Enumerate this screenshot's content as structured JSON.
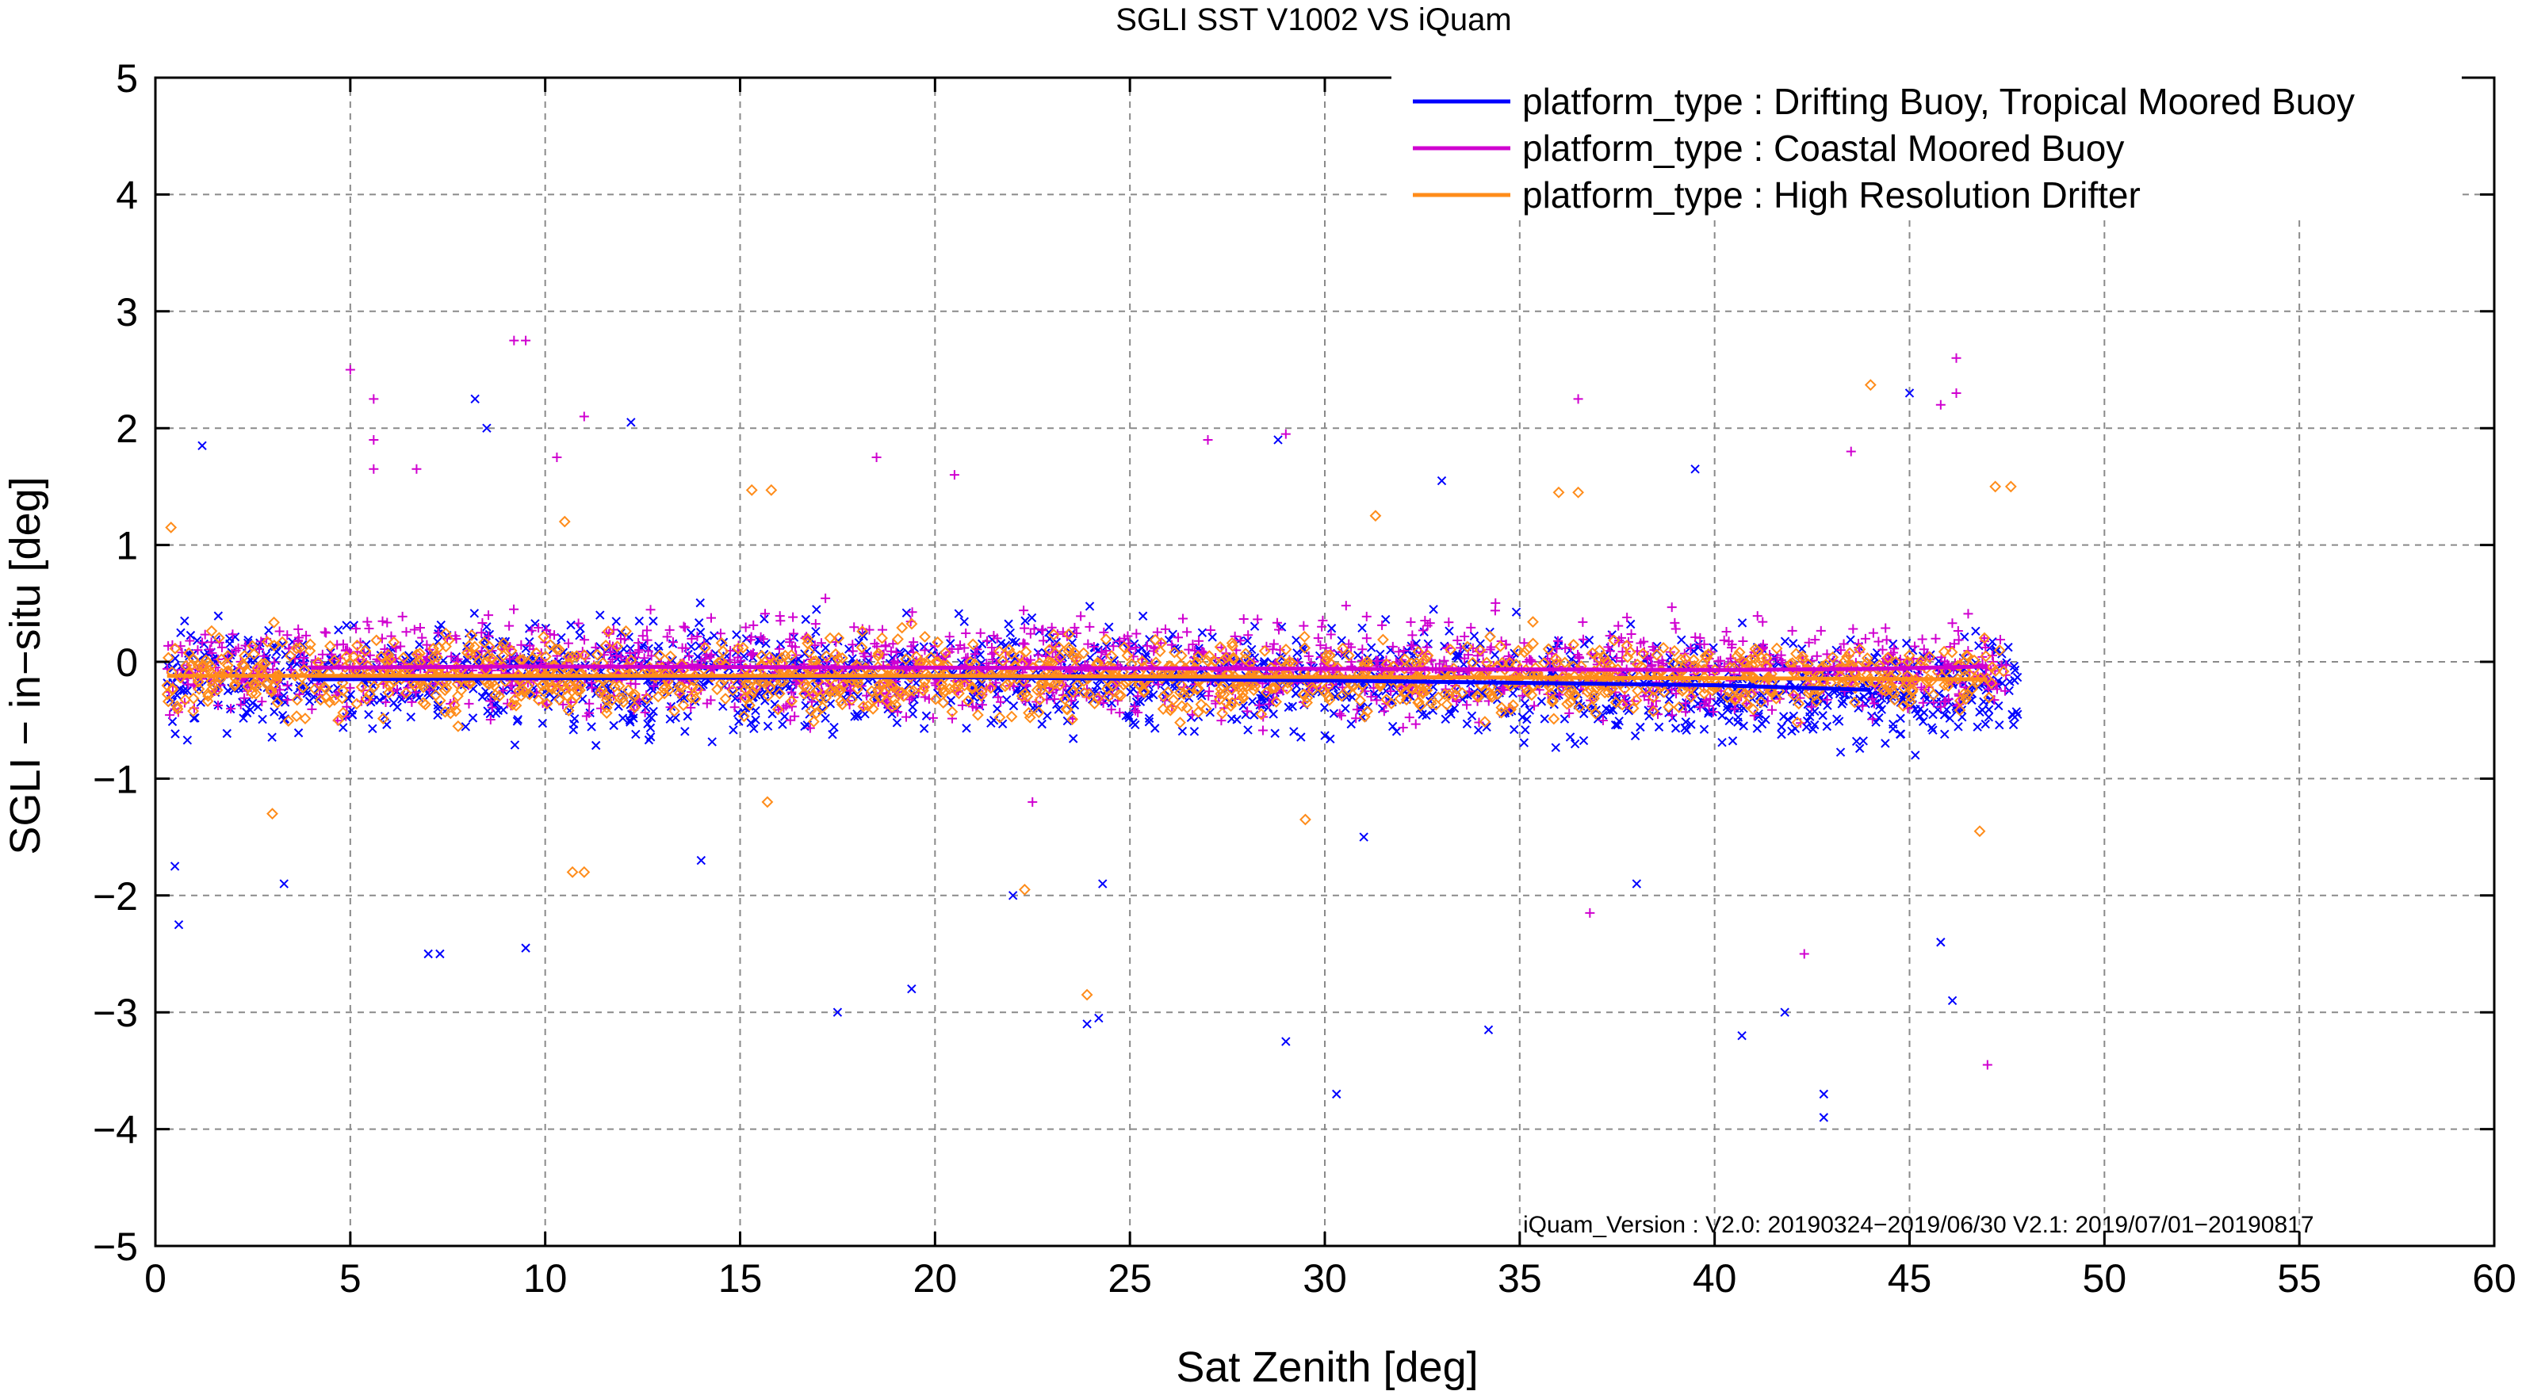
{
  "chart_data": {
    "type": "scatter",
    "title": "SGLI SST V1002 VS iQuam",
    "xlabel": "Sat Zenith [deg]",
    "ylabel": "SGLI − in−situ [deg]",
    "xlim": [
      0,
      60
    ],
    "ylim": [
      -5,
      5
    ],
    "xticks": [
      0,
      5,
      10,
      15,
      20,
      25,
      30,
      35,
      40,
      45,
      50,
      55,
      60
    ],
    "yticks": [
      -5,
      -4,
      -3,
      -2,
      -1,
      0,
      1,
      2,
      3,
      4,
      5
    ],
    "xtick_labels": [
      "0",
      "5",
      "10",
      "15",
      "20",
      "25",
      "30",
      "35",
      "40",
      "45",
      "50",
      "55",
      "60"
    ],
    "ytick_labels": [
      "−5",
      "−4",
      "−3",
      "−2",
      "−1",
      "0",
      "1",
      "2",
      "3",
      "4",
      "5"
    ],
    "grid": true,
    "legend_position": "top-right",
    "note": "iQuam_Version :  V2.0: 20190324−2019/06/30 V2.1: 2019/07/01−20190817",
    "series": [
      {
        "name": "platform_type : Drifting Buoy, Tropical Moored Buoy",
        "color": "#0000ff",
        "marker": "x",
        "trend": [
          [
            4,
            -0.15
          ],
          [
            10,
            -0.14
          ],
          [
            20,
            -0.13
          ],
          [
            30,
            -0.16
          ],
          [
            40,
            -0.2
          ],
          [
            44,
            -0.24
          ]
        ],
        "outliers": [
          [
            0.5,
            -1.75
          ],
          [
            0.6,
            -2.25
          ],
          [
            1.2,
            1.85
          ],
          [
            3.3,
            -1.9
          ],
          [
            8.2,
            2.25
          ],
          [
            8.5,
            2.0
          ],
          [
            7.0,
            -2.5
          ],
          [
            7.3,
            -2.5
          ],
          [
            9.5,
            -2.45
          ],
          [
            12.2,
            2.05
          ],
          [
            17.5,
            -3.0
          ],
          [
            19.4,
            -2.8
          ],
          [
            23.9,
            -3.1
          ],
          [
            24.2,
            -3.05
          ],
          [
            24.3,
            -1.9
          ],
          [
            28.8,
            1.9
          ],
          [
            29.0,
            -3.25
          ],
          [
            30.3,
            -3.7
          ],
          [
            34.2,
            -3.15
          ],
          [
            40.7,
            -3.2
          ],
          [
            42.8,
            -3.7
          ],
          [
            42.8,
            -3.9
          ],
          [
            41.8,
            -3.0
          ],
          [
            45.0,
            2.3
          ],
          [
            46.1,
            -2.9
          ],
          [
            45.8,
            -2.4
          ],
          [
            38.0,
            -1.9
          ],
          [
            31.0,
            -1.5
          ],
          [
            22.0,
            -2.0
          ],
          [
            14.0,
            -1.7
          ],
          [
            33.0,
            1.55
          ],
          [
            39.5,
            1.65
          ]
        ]
      },
      {
        "name": "platform_type : Coastal Moored Buoy",
        "color": "#d000d0",
        "marker": "+",
        "trend": [
          [
            4,
            -0.05
          ],
          [
            10,
            -0.04
          ],
          [
            20,
            -0.05
          ],
          [
            30,
            -0.06
          ],
          [
            40,
            -0.07
          ],
          [
            44,
            -0.06
          ],
          [
            47,
            -0.04
          ]
        ],
        "outliers": [
          [
            5.0,
            2.5
          ],
          [
            5.6,
            2.25
          ],
          [
            5.6,
            1.9
          ],
          [
            5.6,
            1.65
          ],
          [
            9.2,
            2.75
          ],
          [
            9.5,
            2.75
          ],
          [
            11.0,
            2.1
          ],
          [
            18.5,
            1.75
          ],
          [
            20.5,
            1.6
          ],
          [
            29.0,
            1.95
          ],
          [
            36.5,
            2.25
          ],
          [
            46.2,
            2.6
          ],
          [
            46.2,
            2.3
          ],
          [
            45.8,
            2.2
          ],
          [
            43.5,
            1.8
          ],
          [
            47.0,
            -3.45
          ],
          [
            42.3,
            -2.5
          ],
          [
            36.8,
            -2.15
          ],
          [
            22.5,
            -1.2
          ],
          [
            27.0,
            1.9
          ],
          [
            10.3,
            1.75
          ],
          [
            6.7,
            1.65
          ]
        ]
      },
      {
        "name": "platform_type : High Resolution Drifter",
        "color": "#ff8c1a",
        "marker": "diamond",
        "trend": [
          [
            0.3,
            -0.12
          ],
          [
            10,
            -0.12
          ],
          [
            20,
            -0.12
          ],
          [
            30,
            -0.13
          ],
          [
            40,
            -0.14
          ],
          [
            47,
            -0.15
          ]
        ],
        "outliers": [
          [
            0.4,
            1.15
          ],
          [
            15.3,
            1.47
          ],
          [
            15.8,
            1.47
          ],
          [
            36.0,
            1.45
          ],
          [
            36.5,
            1.45
          ],
          [
            44.0,
            2.37
          ],
          [
            47.2,
            1.5
          ],
          [
            47.6,
            1.5
          ],
          [
            10.7,
            -1.8
          ],
          [
            11.0,
            -1.8
          ],
          [
            23.9,
            -2.85
          ],
          [
            22.3,
            -1.95
          ],
          [
            15.7,
            -1.2
          ],
          [
            31.3,
            1.25
          ],
          [
            29.5,
            -1.35
          ],
          [
            46.8,
            -1.45
          ],
          [
            3.0,
            -1.3
          ],
          [
            10.5,
            1.2
          ]
        ]
      }
    ]
  }
}
